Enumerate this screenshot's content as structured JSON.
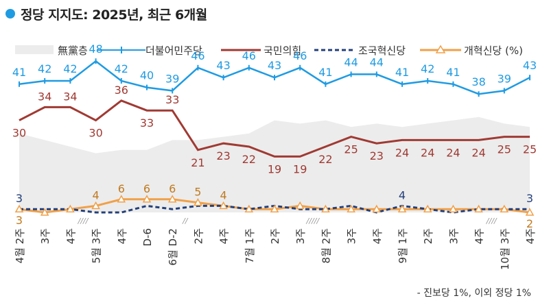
{
  "title": "정당 지지도: 2025년, 최근 6개월",
  "footnote": "- 진보당 1%, 이외 정당 1%",
  "colors": {
    "dem": "#1f9be2",
    "ppp": "#a03a33",
    "rebuild": "#233f7a",
    "reform": "#f0a048",
    "none": "#ececec",
    "title_dot": "#1f9be2"
  },
  "chart_data": {
    "type": "line",
    "title": "",
    "xlabel": "",
    "ylabel": "",
    "x_labels": [
      "4월 2주",
      "3주",
      "4주",
      "5월 3주",
      "4주",
      "D-6",
      "6월 D-2",
      "2주",
      "4주",
      "7월 1주",
      "2주",
      "3주",
      "8월 2주",
      "3주",
      "4주",
      "9월 1주",
      "2주",
      "3주",
      "4주",
      "10월 3주",
      "4주"
    ],
    "series": [
      {
        "name": "無黨층",
        "type": "area",
        "values": [
          26,
          24,
          22,
          20,
          21,
          21,
          24,
          24,
          25,
          26,
          30,
          29,
          30,
          28,
          29,
          28,
          29,
          30,
          31,
          29,
          28
        ]
      },
      {
        "name": "더불어민주당",
        "values": [
          41,
          42,
          42,
          48,
          42,
          40,
          39,
          46,
          43,
          46,
          43,
          46,
          41,
          44,
          44,
          41,
          42,
          41,
          38,
          39,
          43
        ]
      },
      {
        "name": "국민의힘",
        "values": [
          30,
          34,
          34,
          30,
          36,
          33,
          33,
          21,
          23,
          22,
          19,
          19,
          22,
          25,
          23,
          24,
          24,
          24,
          24,
          25,
          25
        ]
      },
      {
        "name": "조국혁신당",
        "values": [
          3,
          3,
          3,
          2,
          2,
          4,
          3,
          4,
          4,
          3,
          4,
          3,
          3,
          4,
          2,
          4,
          3,
          2,
          3,
          3,
          3
        ]
      },
      {
        "name": "개혁신당 (%)",
        "values": [
          3,
          2,
          3,
          4,
          6,
          6,
          6,
          5,
          4,
          3,
          3,
          4,
          3,
          3,
          3,
          3,
          3,
          3,
          3,
          3,
          2
        ]
      }
    ],
    "shown_labels": {
      "더불어민주당": [
        41,
        42,
        42,
        48,
        42,
        40,
        39,
        46,
        43,
        46,
        43,
        46,
        41,
        44,
        44,
        41,
        42,
        41,
        38,
        39,
        43
      ],
      "국민의힘": [
        30,
        34,
        34,
        30,
        36,
        33,
        33,
        21,
        23,
        22,
        19,
        19,
        22,
        25,
        23,
        24,
        24,
        24,
        24,
        25,
        25
      ],
      "조국혁신당": [
        {
          "i": 0,
          "v": "3"
        },
        {
          "i": 15,
          "v": "4"
        },
        {
          "i": 20,
          "v": "3"
        }
      ],
      "개혁신당 (%)": [
        {
          "i": 0,
          "v": "3"
        },
        {
          "i": 3,
          "v": "4"
        },
        {
          "i": 4,
          "v": "6"
        },
        {
          "i": 5,
          "v": "6"
        },
        {
          "i": 6,
          "v": "6"
        },
        {
          "i": 7,
          "v": "5"
        },
        {
          "i": 8,
          "v": "4"
        },
        {
          "i": 20,
          "v": "2"
        }
      ]
    },
    "breaks": [
      {
        "after": 2,
        "mark": "////"
      },
      {
        "after": 6,
        "mark": "//"
      },
      {
        "after": 11,
        "mark": "/////"
      },
      {
        "after": 18,
        "mark": "////"
      }
    ],
    "ylim": [
      0,
      55
    ],
    "grid": false,
    "legend": "top"
  }
}
